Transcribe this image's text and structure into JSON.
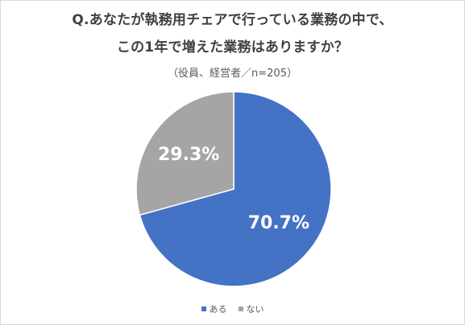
{
  "chart_data": {
    "type": "pie",
    "title_line1": "Q.あなたが執務用チェアで行っている業務の中で、",
    "title_line2": "この1年で増えた業務はありますか？",
    "subtitle": "（役員、経営者／n=205）",
    "categories": [
      "ある",
      "ない"
    ],
    "values": [
      70.7,
      29.3
    ],
    "labels": [
      "70.7%",
      "29.3%"
    ],
    "colors": [
      "#4472c4",
      "#a5a5a5"
    ],
    "legend_position": "bottom",
    "start_angle": "12 o'clock",
    "direction": "clockwise"
  }
}
